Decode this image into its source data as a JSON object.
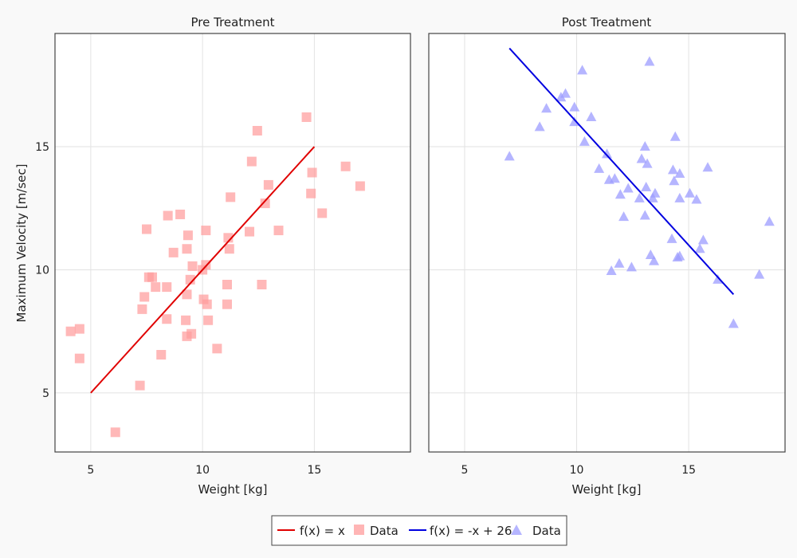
{
  "chart_data": [
    {
      "type": "scatter",
      "title": "Pre Treatment",
      "xlabel": "Weight [kg]",
      "ylabel": "Maximum Velocity [m/sec]",
      "xlim": [
        3.4,
        19.3
      ],
      "ylim": [
        2.6,
        19.6
      ],
      "xticks": [
        5,
        10,
        15
      ],
      "yticks": [
        5,
        10,
        15
      ],
      "grid": true,
      "series": [
        {
          "name": "f(x) = x",
          "kind": "line",
          "color": "#e00000",
          "points": [
            [
              5,
              5
            ],
            [
              15,
              15
            ]
          ]
        },
        {
          "name": "Data",
          "kind": "scatter",
          "marker": "square",
          "color": "#ff9c9c",
          "points": [
            [
              4.1,
              7.5
            ],
            [
              4.5,
              7.6
            ],
            [
              4.5,
              6.4
            ],
            [
              6.1,
              3.4
            ],
            [
              7.2,
              5.3
            ],
            [
              7.3,
              8.4
            ],
            [
              7.4,
              8.9
            ],
            [
              7.5,
              11.65
            ],
            [
              7.6,
              9.7
            ],
            [
              7.75,
              9.7
            ],
            [
              7.9,
              9.3
            ],
            [
              8.15,
              6.55
            ],
            [
              8.4,
              8.0
            ],
            [
              8.4,
              9.3
            ],
            [
              8.45,
              12.2
            ],
            [
              8.7,
              10.7
            ],
            [
              9.0,
              12.25
            ],
            [
              9.25,
              7.95
            ],
            [
              9.3,
              9.0
            ],
            [
              9.3,
              10.85
            ],
            [
              9.35,
              11.4
            ],
            [
              9.3,
              7.3
            ],
            [
              9.45,
              9.6
            ],
            [
              9.5,
              7.4
            ],
            [
              9.55,
              10.15
            ],
            [
              10.0,
              10.0
            ],
            [
              10.05,
              8.8
            ],
            [
              10.15,
              10.2
            ],
            [
              10.15,
              11.6
            ],
            [
              10.2,
              8.6
            ],
            [
              10.25,
              7.95
            ],
            [
              10.65,
              6.8
            ],
            [
              11.1,
              9.4
            ],
            [
              11.1,
              8.6
            ],
            [
              11.15,
              11.3
            ],
            [
              11.2,
              10.85
            ],
            [
              11.25,
              12.95
            ],
            [
              12.1,
              11.55
            ],
            [
              12.2,
              14.4
            ],
            [
              12.45,
              15.65
            ],
            [
              12.65,
              9.4
            ],
            [
              12.8,
              12.7
            ],
            [
              12.95,
              13.45
            ],
            [
              13.4,
              11.6
            ],
            [
              14.65,
              16.2
            ],
            [
              14.85,
              13.1
            ],
            [
              14.9,
              13.95
            ],
            [
              15.35,
              12.3
            ],
            [
              16.4,
              14.2
            ],
            [
              17.05,
              13.4
            ]
          ]
        }
      ]
    },
    {
      "type": "scatter",
      "title": "Post Treatment",
      "xlabel": "Weight [kg]",
      "ylabel": "",
      "xlim": [
        3.4,
        19.3
      ],
      "ylim": [
        2.6,
        19.6
      ],
      "xticks": [
        5,
        10,
        15
      ],
      "yticks": [
        5,
        10,
        15
      ],
      "grid": true,
      "series": [
        {
          "name": "f(x) = -x + 26",
          "kind": "line",
          "color": "#0000e0",
          "points": [
            [
              7,
              19
            ],
            [
              17,
              9
            ]
          ]
        },
        {
          "name": "Data",
          "kind": "scatter",
          "marker": "triangle",
          "color": "#9c9cff",
          "points": [
            [
              7.0,
              14.6
            ],
            [
              8.35,
              15.8
            ],
            [
              8.65,
              16.55
            ],
            [
              9.3,
              17.0
            ],
            [
              9.5,
              17.15
            ],
            [
              9.9,
              16.0
            ],
            [
              9.9,
              16.6
            ],
            [
              10.25,
              18.1
            ],
            [
              10.35,
              15.2
            ],
            [
              10.65,
              16.2
            ],
            [
              11.0,
              14.1
            ],
            [
              11.35,
              14.7
            ],
            [
              11.45,
              13.65
            ],
            [
              11.55,
              9.95
            ],
            [
              11.7,
              13.7
            ],
            [
              11.9,
              10.25
            ],
            [
              11.95,
              13.05
            ],
            [
              12.1,
              12.15
            ],
            [
              12.3,
              13.3
            ],
            [
              12.45,
              10.1
            ],
            [
              12.8,
              12.9
            ],
            [
              12.9,
              14.5
            ],
            [
              13.05,
              15.0
            ],
            [
              13.05,
              12.2
            ],
            [
              13.1,
              13.35
            ],
            [
              13.15,
              14.3
            ],
            [
              13.25,
              18.45
            ],
            [
              13.3,
              10.6
            ],
            [
              13.4,
              12.9
            ],
            [
              13.45,
              10.35
            ],
            [
              13.5,
              13.1
            ],
            [
              14.25,
              11.25
            ],
            [
              14.3,
              14.05
            ],
            [
              14.35,
              13.6
            ],
            [
              14.4,
              15.4
            ],
            [
              14.5,
              10.5
            ],
            [
              14.6,
              10.55
            ],
            [
              14.6,
              12.9
            ],
            [
              14.6,
              13.9
            ],
            [
              15.05,
              13.1
            ],
            [
              15.35,
              12.85
            ],
            [
              15.5,
              10.85
            ],
            [
              15.65,
              11.2
            ],
            [
              15.85,
              14.15
            ],
            [
              16.3,
              9.6
            ],
            [
              17.0,
              7.8
            ],
            [
              18.15,
              9.8
            ],
            [
              18.6,
              11.95
            ]
          ]
        }
      ]
    }
  ],
  "legend": {
    "placement": "bottom-center",
    "items": [
      {
        "label": "f(x) = x",
        "kind": "line",
        "color": "#e00000"
      },
      {
        "label": "Data",
        "kind": "square",
        "color": "#ff9c9c"
      },
      {
        "label": "f(x) = -x + 26",
        "kind": "line",
        "color": "#0000e0"
      },
      {
        "label": "Data",
        "kind": "triangle",
        "color": "#9c9cff"
      }
    ]
  }
}
